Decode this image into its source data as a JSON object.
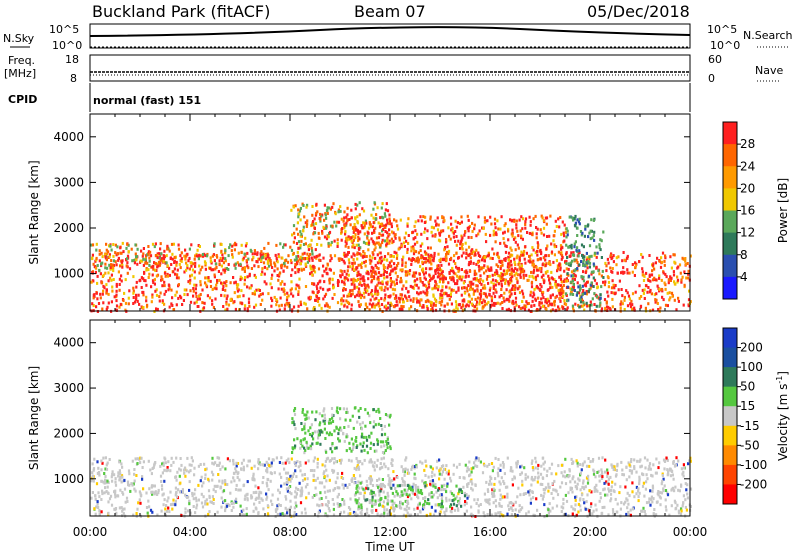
{
  "header": {
    "station": "Buckland Park (fitACF)",
    "beam": "Beam 07",
    "date": "05/Dec/2018"
  },
  "status_panels": {
    "nsky_label": "N.Sky",
    "nsearch_label": "N.Search",
    "noise_ticks": [
      "10^5",
      "10^0"
    ],
    "freq_label_1": "Freq.",
    "freq_label_2": "[MHz]",
    "freq_ticks": [
      "18",
      "8"
    ],
    "nave_label": "Nave",
    "nave_ticks": [
      "60",
      "0"
    ],
    "cpid_label": "CPID",
    "cpid_value": "normal (fast) 151"
  },
  "chart_data": [
    {
      "type": "heatmap",
      "name": "power",
      "xlabel": "",
      "ylabel": "Slant Range [km]",
      "xlim": [
        0,
        24
      ],
      "ylim": [
        180,
        4500
      ],
      "yticks": [
        "1000",
        "2000",
        "3000",
        "4000"
      ],
      "colorbar": {
        "label": "Power [dB]",
        "ticks": [
          "4",
          "8",
          "12",
          "16",
          "20",
          "24",
          "28"
        ],
        "colors": [
          "#1a1aff",
          "#2a4fb0",
          "#2e7a5a",
          "#5aa85a",
          "#f0c800",
          "#ff9a00",
          "#ff6600",
          "#ff2020"
        ]
      },
      "regions": [
        {
          "t": [
            0,
            24
          ],
          "r": [
            200,
            1500
          ],
          "level": "high"
        },
        {
          "t": [
            0,
            9
          ],
          "r": [
            1100,
            1700
          ],
          "level": "mid"
        },
        {
          "t": [
            8,
            12
          ],
          "r": [
            1600,
            2600
          ],
          "level": "mid"
        },
        {
          "t": [
            10,
            19
          ],
          "r": [
            300,
            2300
          ],
          "level": "high"
        },
        {
          "t": [
            19,
            20.5
          ],
          "r": [
            300,
            2300
          ],
          "level": "low"
        }
      ]
    },
    {
      "type": "heatmap",
      "name": "velocity",
      "xlabel": "Time UT",
      "ylabel": "Slant Range [km]",
      "xlim": [
        0,
        24
      ],
      "ylim": [
        180,
        4500
      ],
      "xticks": [
        "00:00",
        "04:00",
        "08:00",
        "12:00",
        "16:00",
        "20:00",
        "00:00"
      ],
      "yticks": [
        "1000",
        "2000",
        "3000",
        "4000"
      ],
      "colorbar": {
        "label": "Velocity [m s",
        "label_exp": "-1",
        "label_end": "]",
        "ticks": [
          "200",
          "100",
          "50",
          "15",
          "-15",
          "-50",
          "-100",
          "-200"
        ],
        "colors": [
          "#1a3cc8",
          "#1a4fa0",
          "#2e7a5a",
          "#55c840",
          "#c8c8c8",
          "#ffcc00",
          "#ff8a00",
          "#ff4400",
          "#ff0000"
        ]
      },
      "regions": [
        {
          "t": [
            0,
            24
          ],
          "r": [
            200,
            1500
          ],
          "level": "ground"
        },
        {
          "t": [
            8,
            12
          ],
          "r": [
            1600,
            2600
          ],
          "level": "positive"
        },
        {
          "t": [
            10.5,
            15
          ],
          "r": [
            400,
            900
          ],
          "level": "positive"
        }
      ]
    }
  ]
}
